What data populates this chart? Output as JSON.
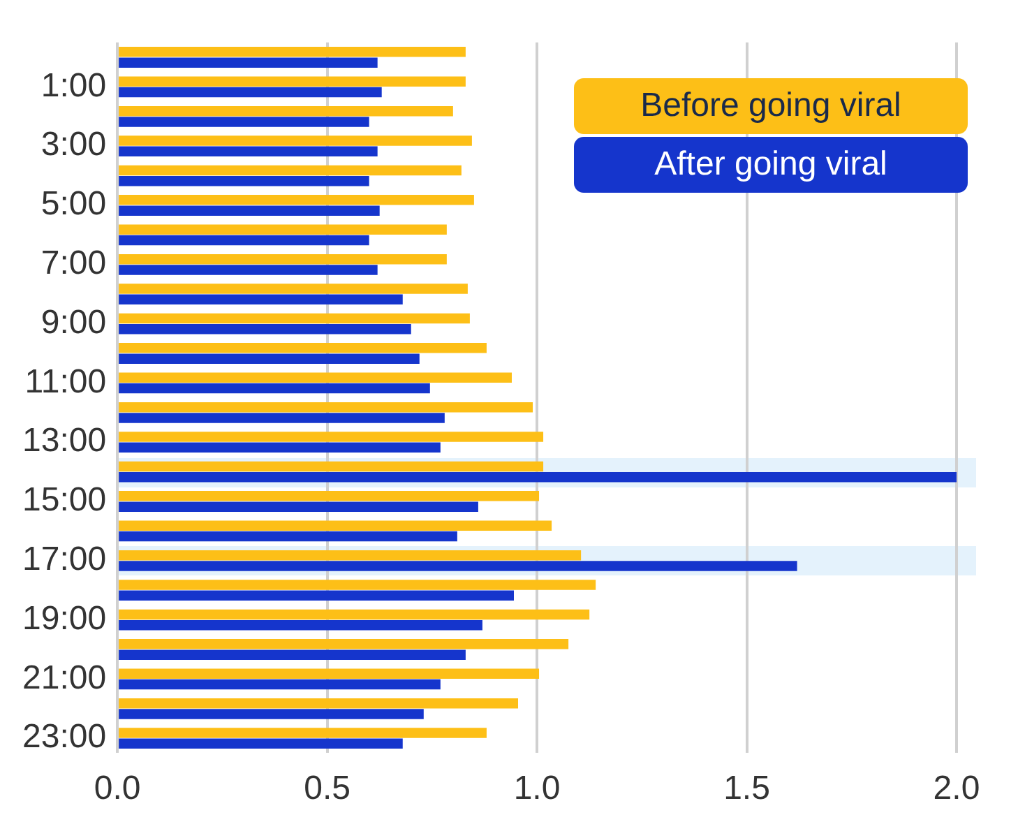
{
  "chart_data": {
    "type": "bar",
    "orientation": "horizontal",
    "categories": [
      null,
      "1:00",
      null,
      "3:00",
      null,
      "5:00",
      null,
      "7:00",
      null,
      "9:00",
      null,
      "11:00",
      null,
      "13:00",
      null,
      "15:00",
      null,
      "17:00",
      null,
      "19:00",
      null,
      "21:00",
      null,
      "23:00"
    ],
    "series": [
      {
        "name": "Before going viral",
        "color": "#fdbf17",
        "values": [
          0.83,
          0.83,
          0.8,
          0.845,
          0.82,
          0.85,
          0.785,
          0.785,
          0.835,
          0.84,
          0.88,
          0.94,
          0.99,
          1.015,
          1.015,
          1.005,
          1.035,
          1.105,
          1.14,
          1.125,
          1.075,
          1.005,
          0.955,
          0.88
        ]
      },
      {
        "name": "After going viral",
        "color": "#1535cc",
        "values": [
          0.62,
          0.63,
          0.6,
          0.62,
          0.6,
          0.625,
          0.6,
          0.62,
          0.68,
          0.7,
          0.72,
          0.745,
          0.78,
          0.77,
          2.0,
          0.86,
          0.81,
          1.62,
          0.945,
          0.87,
          0.83,
          0.77,
          0.73,
          0.68
        ]
      }
    ],
    "xlim": [
      0,
      2.02
    ],
    "xticks": [
      {
        "value": 0,
        "label": "0.0"
      },
      0.5,
      {
        "value": 1,
        "label": "1.0"
      },
      1.5,
      {
        "value": 2,
        "label": "2.0"
      }
    ],
    "grid": "x",
    "legend": "top right"
  }
}
